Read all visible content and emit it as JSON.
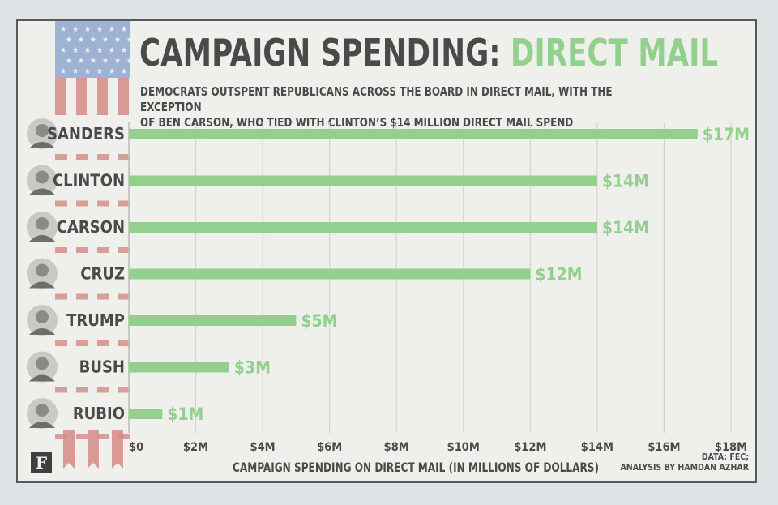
{
  "title_part1": "CAMPAIGN SPENDING:",
  "title_part2": "DIRECT MAIL",
  "subtitle": "DEMOCRATS OUTSPENT REPUBLICANS ACROSS THE BOARD IN DIRECT MAIL, WITH THE EXCEPTION\nOF BEN CARSON, WHO TIED WITH CLINTON’S $14 MILLION DIRECT MAIL SPEND",
  "source": "DATA: FEC;\nANALYSIS BY HAMDAN AZHAR",
  "logo_letter": "F",
  "colors": {
    "bar": "#93d08e",
    "text": "#4b4949",
    "flag_red": "#d58a86",
    "flag_blue": "#8fa8cc"
  },
  "chart_data": {
    "type": "bar",
    "orientation": "horizontal",
    "categories": [
      "SANDERS",
      "CLINTON",
      "CARSON",
      "CRUZ",
      "TRUMP",
      "BUSH",
      "RUBIO"
    ],
    "values": [
      17,
      14,
      14,
      12,
      5,
      3,
      1
    ],
    "value_labels": [
      "$17M",
      "$14M",
      "$14M",
      "$12M",
      "$5M",
      "$3M",
      "$1M"
    ],
    "xlabel": "CAMPAIGN SPENDING ON DIRECT MAIL (IN MILLIONS OF DOLLARS)",
    "ticks": [
      0,
      2,
      4,
      6,
      8,
      10,
      12,
      14,
      16,
      18
    ],
    "tick_labels": [
      "$0",
      "$2M",
      "$4M",
      "$6M",
      "$8M",
      "$10M",
      "$12M",
      "$14M",
      "$16M",
      "$18M"
    ],
    "xlim": [
      0,
      18
    ],
    "grid": true
  }
}
